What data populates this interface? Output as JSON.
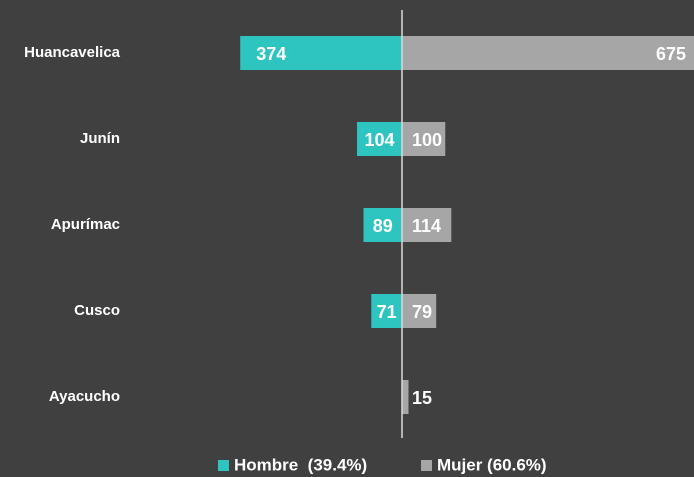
{
  "chart_data": {
    "type": "butterfly",
    "categories": [
      "Huancavelica",
      "Junín",
      "Apurímac",
      "Cusco",
      "Ayacucho"
    ],
    "series": [
      {
        "name": "Hombre  (39.4%)",
        "color": "#2ec4c0",
        "values": [
          374,
          104,
          89,
          71,
          null
        ]
      },
      {
        "name": "Mujer (60.6%)",
        "color": "#a6a6a6",
        "values": [
          675,
          100,
          114,
          79,
          15
        ]
      }
    ]
  }
}
